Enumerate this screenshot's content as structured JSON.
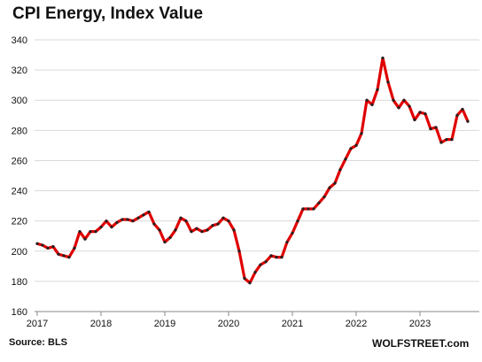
{
  "title": "CPI Energy, Index Value",
  "source": "Source: BLS",
  "brand": "WOLFSTREET.com",
  "colors": {
    "line": "#e00000",
    "marker": "#222222",
    "grid": "#d9d9d9",
    "axis": "#888888"
  },
  "chart_data": {
    "type": "line",
    "title": "CPI Energy, Index Value",
    "xlabel": "",
    "ylabel": "",
    "ylim": [
      160,
      340
    ],
    "yticks": [
      "160",
      "180",
      "200",
      "220",
      "240",
      "260",
      "280",
      "300",
      "320",
      "340"
    ],
    "xticks": [
      "2017",
      "2018",
      "2019",
      "2020",
      "2021",
      "2022",
      "2023"
    ],
    "grid": "horizontal",
    "series": [
      {
        "frequency": "monthly",
        "start": "2017-01",
        "values": [
          205,
          204,
          202,
          203,
          198,
          197,
          196,
          202,
          213,
          208,
          213,
          213,
          216,
          220,
          216,
          219,
          221,
          221,
          220,
          222,
          224,
          226,
          218,
          214,
          206,
          209,
          214,
          222,
          220,
          213,
          215,
          213,
          214,
          217,
          218,
          222,
          220,
          214,
          200,
          182,
          179,
          186,
          191,
          193,
          197,
          196,
          196,
          206,
          212,
          220,
          228,
          228,
          228,
          232,
          236,
          242,
          245,
          254,
          261,
          268,
          270,
          278,
          300,
          297,
          307,
          328,
          312,
          300,
          295,
          300,
          296,
          287,
          292,
          291,
          281,
          282,
          272,
          274,
          274,
          290,
          294,
          286
        ]
      }
    ]
  }
}
